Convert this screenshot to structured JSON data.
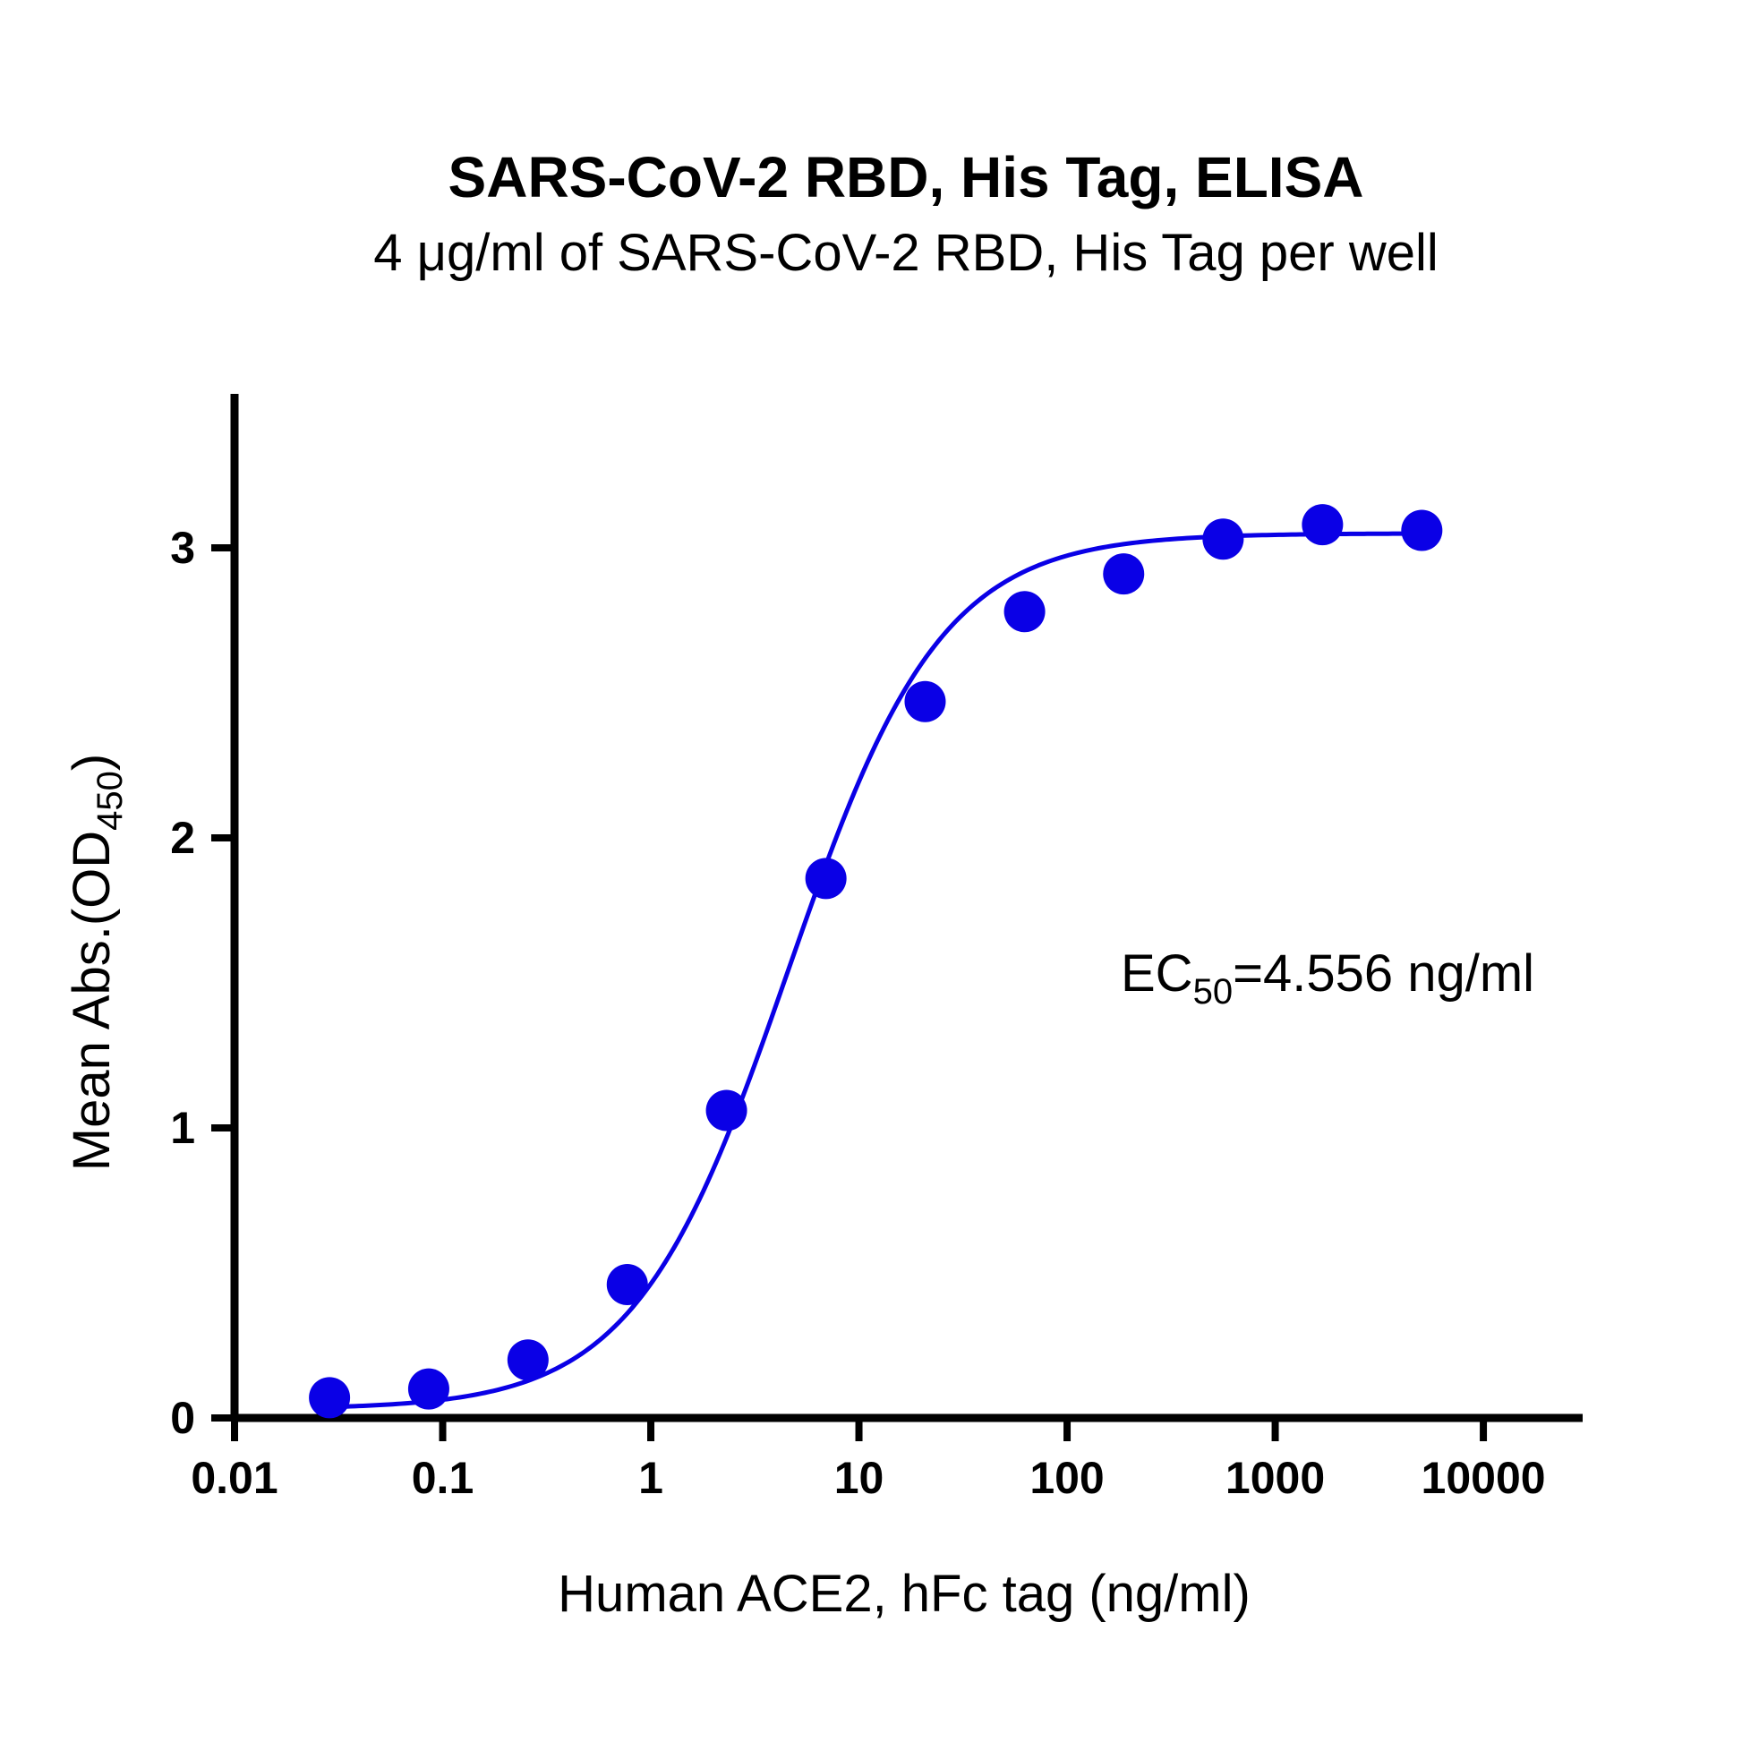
{
  "chart_data": {
    "type": "scatter",
    "title": "SARS-CoV-2 RBD, His Tag, ELISA",
    "subtitle": "4 μg/ml of SARS-CoV-2 RBD, His Tag per well",
    "xlabel": "Human ACE2, hFc tag (ng/ml)",
    "ylabel": {
      "main": "Mean Abs.(OD",
      "sub": "450",
      "close": ")"
    },
    "x_scale": "log",
    "xlim": [
      0.01,
      30000
    ],
    "ylim": [
      0,
      3.5
    ],
    "x_ticks": [
      {
        "value": 0.01,
        "label": "0.01"
      },
      {
        "value": 0.1,
        "label": "0.1"
      },
      {
        "value": 1,
        "label": "1"
      },
      {
        "value": 10,
        "label": "10"
      },
      {
        "value": 100,
        "label": "100"
      },
      {
        "value": 1000,
        "label": "1000"
      },
      {
        "value": 10000,
        "label": "10000"
      }
    ],
    "y_ticks": [
      {
        "value": 0,
        "label": "0"
      },
      {
        "value": 1,
        "label": "1"
      },
      {
        "value": 2,
        "label": "2"
      },
      {
        "value": 3,
        "label": "3"
      }
    ],
    "grid": false,
    "series": [
      {
        "color": "#0a00e6",
        "points": [
          {
            "x": 0.0286,
            "y": 0.07
          },
          {
            "x": 0.0857,
            "y": 0.1
          },
          {
            "x": 0.257,
            "y": 0.2
          },
          {
            "x": 0.771,
            "y": 0.46
          },
          {
            "x": 2.31,
            "y": 1.06
          },
          {
            "x": 6.94,
            "y": 1.86
          },
          {
            "x": 20.8,
            "y": 2.47
          },
          {
            "x": 62.5,
            "y": 2.78
          },
          {
            "x": 187,
            "y": 2.91
          },
          {
            "x": 562,
            "y": 3.03
          },
          {
            "x": 1687,
            "y": 3.08
          },
          {
            "x": 5062,
            "y": 3.06
          }
        ],
        "fit": {
          "model": "4PL",
          "bottom": 0.03,
          "top": 3.05,
          "ec50": 4.556,
          "hill": 1.18,
          "x_range": [
            0.0286,
            5062
          ]
        }
      }
    ],
    "annotation": {
      "prefix": "EC",
      "sub": "50",
      "suffix": "=4.556 ng/ml"
    }
  }
}
